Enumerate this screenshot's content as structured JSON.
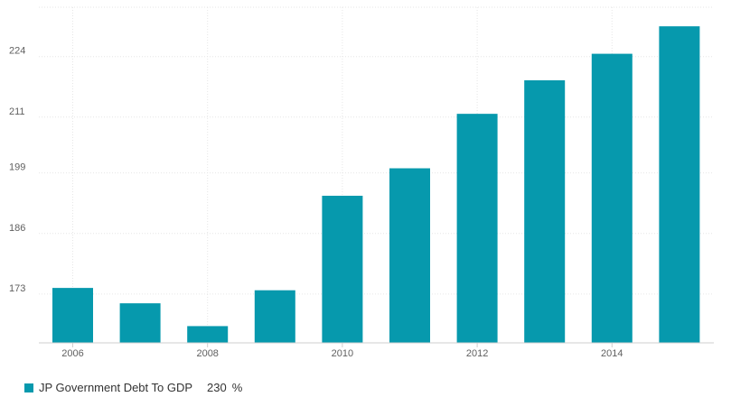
{
  "chart_data": {
    "type": "bar",
    "categories": [
      "2006",
      "2007",
      "2008",
      "2009",
      "2010",
      "2011",
      "2012",
      "2013",
      "2014",
      "2015"
    ],
    "values": [
      174.3,
      171.0,
      166.1,
      173.8,
      194.1,
      200.0,
      211.7,
      218.9,
      224.6,
      230.5
    ],
    "x_tick_labels": [
      "2006",
      "2008",
      "2010",
      "2012",
      "2014"
    ],
    "y_ticks": [
      173,
      186,
      199,
      211,
      224
    ],
    "ylim": [
      162.5,
      234.6
    ],
    "grid": true,
    "color": "#0699ad",
    "legend_position": "bottom-left",
    "legend": {
      "name": "JP Government Debt To GDP",
      "latest_value": "230",
      "unit": "%"
    }
  }
}
